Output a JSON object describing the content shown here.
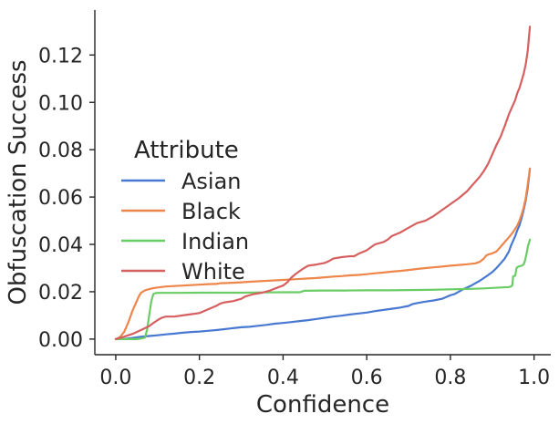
{
  "chart_data": {
    "type": "line",
    "title": "",
    "xlabel": "Confidence",
    "ylabel": "Obfuscation Success",
    "xlim": [
      -0.05,
      1.04
    ],
    "ylim": [
      -0.0066,
      0.139
    ],
    "grid": false,
    "xticks": {
      "values": [
        0.0,
        0.2,
        0.4,
        0.6,
        0.8,
        1.0
      ],
      "labels": [
        "0.0",
        "0.2",
        "0.4",
        "0.6",
        "0.8",
        "1.0"
      ]
    },
    "yticks": {
      "values": [
        0.0,
        0.02,
        0.04,
        0.06,
        0.08,
        0.1,
        0.12
      ],
      "labels": [
        "0.00",
        "0.02",
        "0.04",
        "0.06",
        "0.08",
        "0.10",
        "0.12"
      ]
    },
    "legend": {
      "title": "Attribute",
      "position": "upper-left-inside",
      "entries": [
        "Asian",
        "Black",
        "Indian",
        "White"
      ]
    },
    "colors": {
      "text": "#262626",
      "spine": "#262626",
      "background": "#ffffff"
    },
    "series": [
      {
        "name": "Asian",
        "color": "#4878d0",
        "points": [
          [
            0.0,
            0.0
          ],
          [
            0.02,
            0.0
          ],
          [
            0.04,
            0.0005
          ],
          [
            0.06,
            0.001
          ],
          [
            0.08,
            0.0013
          ],
          [
            0.1,
            0.0016
          ],
          [
            0.12,
            0.002
          ],
          [
            0.14,
            0.0023
          ],
          [
            0.16,
            0.0027
          ],
          [
            0.18,
            0.003
          ],
          [
            0.2,
            0.0032
          ],
          [
            0.22,
            0.0035
          ],
          [
            0.24,
            0.0038
          ],
          [
            0.26,
            0.0042
          ],
          [
            0.28,
            0.0046
          ],
          [
            0.3,
            0.005
          ],
          [
            0.32,
            0.0052
          ],
          [
            0.34,
            0.0056
          ],
          [
            0.36,
            0.006
          ],
          [
            0.38,
            0.0065
          ],
          [
            0.4,
            0.0068
          ],
          [
            0.42,
            0.0072
          ],
          [
            0.44,
            0.0076
          ],
          [
            0.46,
            0.008
          ],
          [
            0.48,
            0.0085
          ],
          [
            0.5,
            0.009
          ],
          [
            0.52,
            0.0095
          ],
          [
            0.54,
            0.0099
          ],
          [
            0.56,
            0.0104
          ],
          [
            0.58,
            0.0108
          ],
          [
            0.6,
            0.0112
          ],
          [
            0.62,
            0.0118
          ],
          [
            0.64,
            0.0123
          ],
          [
            0.66,
            0.0128
          ],
          [
            0.68,
            0.0133
          ],
          [
            0.7,
            0.014
          ],
          [
            0.71,
            0.0148
          ],
          [
            0.72,
            0.0152
          ],
          [
            0.74,
            0.0158
          ],
          [
            0.76,
            0.0163
          ],
          [
            0.78,
            0.017
          ],
          [
            0.79,
            0.0178
          ],
          [
            0.8,
            0.0185
          ],
          [
            0.81,
            0.019
          ],
          [
            0.82,
            0.02
          ],
          [
            0.83,
            0.021
          ],
          [
            0.84,
            0.0218
          ],
          [
            0.85,
            0.0226
          ],
          [
            0.86,
            0.0236
          ],
          [
            0.87,
            0.0246
          ],
          [
            0.88,
            0.0258
          ],
          [
            0.89,
            0.027
          ],
          [
            0.9,
            0.0283
          ],
          [
            0.91,
            0.03
          ],
          [
            0.92,
            0.032
          ],
          [
            0.93,
            0.034
          ],
          [
            0.94,
            0.037
          ],
          [
            0.945,
            0.0395
          ],
          [
            0.95,
            0.0415
          ],
          [
            0.955,
            0.0435
          ],
          [
            0.96,
            0.046
          ],
          [
            0.965,
            0.048
          ],
          [
            0.97,
            0.051
          ],
          [
            0.975,
            0.0545
          ],
          [
            0.98,
            0.0585
          ],
          [
            0.985,
            0.064
          ],
          [
            0.99,
            0.072
          ]
        ]
      },
      {
        "name": "Black",
        "color": "#ee854a",
        "points": [
          [
            0.0,
            0.0
          ],
          [
            0.01,
            0.0008
          ],
          [
            0.02,
            0.003
          ],
          [
            0.03,
            0.007
          ],
          [
            0.04,
            0.012
          ],
          [
            0.05,
            0.016
          ],
          [
            0.055,
            0.018
          ],
          [
            0.06,
            0.0195
          ],
          [
            0.07,
            0.0206
          ],
          [
            0.08,
            0.0211
          ],
          [
            0.09,
            0.0215
          ],
          [
            0.1,
            0.0218
          ],
          [
            0.12,
            0.0222
          ],
          [
            0.14,
            0.0224
          ],
          [
            0.16,
            0.0226
          ],
          [
            0.18,
            0.0228
          ],
          [
            0.2,
            0.023
          ],
          [
            0.22,
            0.0232
          ],
          [
            0.24,
            0.0233
          ],
          [
            0.25,
            0.0236
          ],
          [
            0.28,
            0.0238
          ],
          [
            0.3,
            0.024
          ],
          [
            0.32,
            0.0242
          ],
          [
            0.34,
            0.0244
          ],
          [
            0.36,
            0.0246
          ],
          [
            0.38,
            0.0248
          ],
          [
            0.4,
            0.025
          ],
          [
            0.43,
            0.0253
          ],
          [
            0.46,
            0.0256
          ],
          [
            0.48,
            0.0258
          ],
          [
            0.5,
            0.0261
          ],
          [
            0.52,
            0.0264
          ],
          [
            0.54,
            0.0266
          ],
          [
            0.56,
            0.0269
          ],
          [
            0.58,
            0.0271
          ],
          [
            0.6,
            0.0274
          ],
          [
            0.62,
            0.0278
          ],
          [
            0.64,
            0.0281
          ],
          [
            0.66,
            0.0285
          ],
          [
            0.68,
            0.0288
          ],
          [
            0.7,
            0.0292
          ],
          [
            0.72,
            0.0296
          ],
          [
            0.74,
            0.03
          ],
          [
            0.76,
            0.0303
          ],
          [
            0.78,
            0.0306
          ],
          [
            0.8,
            0.031
          ],
          [
            0.82,
            0.0313
          ],
          [
            0.84,
            0.0316
          ],
          [
            0.86,
            0.032
          ],
          [
            0.87,
            0.0326
          ],
          [
            0.88,
            0.034
          ],
          [
            0.885,
            0.0352
          ],
          [
            0.89,
            0.0357
          ],
          [
            0.9,
            0.0362
          ],
          [
            0.91,
            0.037
          ],
          [
            0.92,
            0.039
          ],
          [
            0.93,
            0.041
          ],
          [
            0.94,
            0.043
          ],
          [
            0.95,
            0.0452
          ],
          [
            0.96,
            0.048
          ],
          [
            0.965,
            0.05
          ],
          [
            0.97,
            0.0525
          ],
          [
            0.975,
            0.0555
          ],
          [
            0.98,
            0.0595
          ],
          [
            0.985,
            0.0655
          ],
          [
            0.99,
            0.072
          ]
        ]
      },
      {
        "name": "Indian",
        "color": "#6acc64",
        "points": [
          [
            0.0,
            0.0
          ],
          [
            0.05,
            0.0
          ],
          [
            0.06,
            0.0002
          ],
          [
            0.07,
            0.0006
          ],
          [
            0.075,
            0.004
          ],
          [
            0.08,
            0.01
          ],
          [
            0.085,
            0.016
          ],
          [
            0.09,
            0.019
          ],
          [
            0.095,
            0.0194
          ],
          [
            0.1,
            0.0195
          ],
          [
            0.15,
            0.0195
          ],
          [
            0.2,
            0.0196
          ],
          [
            0.25,
            0.0196
          ],
          [
            0.3,
            0.0196
          ],
          [
            0.35,
            0.0197
          ],
          [
            0.4,
            0.0198
          ],
          [
            0.44,
            0.0198
          ],
          [
            0.45,
            0.0204
          ],
          [
            0.5,
            0.0205
          ],
          [
            0.55,
            0.0205
          ],
          [
            0.6,
            0.0206
          ],
          [
            0.65,
            0.0206
          ],
          [
            0.7,
            0.0207
          ],
          [
            0.75,
            0.0208
          ],
          [
            0.8,
            0.021
          ],
          [
            0.85,
            0.0212
          ],
          [
            0.88,
            0.0214
          ],
          [
            0.9,
            0.0216
          ],
          [
            0.92,
            0.0218
          ],
          [
            0.94,
            0.022
          ],
          [
            0.945,
            0.0222
          ],
          [
            0.948,
            0.0228
          ],
          [
            0.95,
            0.0265
          ],
          [
            0.955,
            0.0268
          ],
          [
            0.958,
            0.03
          ],
          [
            0.962,
            0.0306
          ],
          [
            0.97,
            0.031
          ],
          [
            0.975,
            0.0315
          ],
          [
            0.978,
            0.033
          ],
          [
            0.982,
            0.036
          ],
          [
            0.985,
            0.039
          ],
          [
            0.99,
            0.042
          ]
        ]
      },
      {
        "name": "White",
        "color": "#d65f5f",
        "points": [
          [
            0.0,
            0.0
          ],
          [
            0.01,
            0.0005
          ],
          [
            0.02,
            0.001
          ],
          [
            0.03,
            0.0016
          ],
          [
            0.04,
            0.0022
          ],
          [
            0.05,
            0.003
          ],
          [
            0.06,
            0.0038
          ],
          [
            0.07,
            0.0046
          ],
          [
            0.08,
            0.0055
          ],
          [
            0.09,
            0.0068
          ],
          [
            0.1,
            0.008
          ],
          [
            0.11,
            0.009
          ],
          [
            0.12,
            0.0095
          ],
          [
            0.14,
            0.0095
          ],
          [
            0.16,
            0.01
          ],
          [
            0.18,
            0.0105
          ],
          [
            0.2,
            0.011
          ],
          [
            0.22,
            0.0125
          ],
          [
            0.24,
            0.014
          ],
          [
            0.25,
            0.015
          ],
          [
            0.26,
            0.0155
          ],
          [
            0.28,
            0.016
          ],
          [
            0.3,
            0.017
          ],
          [
            0.31,
            0.018
          ],
          [
            0.33,
            0.019
          ],
          [
            0.35,
            0.0196
          ],
          [
            0.37,
            0.0206
          ],
          [
            0.39,
            0.022
          ],
          [
            0.4,
            0.0226
          ],
          [
            0.41,
            0.024
          ],
          [
            0.42,
            0.026
          ],
          [
            0.43,
            0.0275
          ],
          [
            0.44,
            0.0288
          ],
          [
            0.45,
            0.03
          ],
          [
            0.46,
            0.031
          ],
          [
            0.48,
            0.0315
          ],
          [
            0.5,
            0.0322
          ],
          [
            0.51,
            0.033
          ],
          [
            0.52,
            0.034
          ],
          [
            0.54,
            0.0346
          ],
          [
            0.56,
            0.035
          ],
          [
            0.57,
            0.035
          ],
          [
            0.58,
            0.036
          ],
          [
            0.6,
            0.0375
          ],
          [
            0.61,
            0.0388
          ],
          [
            0.62,
            0.04
          ],
          [
            0.64,
            0.041
          ],
          [
            0.65,
            0.042
          ],
          [
            0.66,
            0.0435
          ],
          [
            0.68,
            0.045
          ],
          [
            0.7,
            0.047
          ],
          [
            0.72,
            0.049
          ],
          [
            0.74,
            0.05
          ],
          [
            0.76,
            0.052
          ],
          [
            0.78,
            0.0545
          ],
          [
            0.8,
            0.057
          ],
          [
            0.82,
            0.0595
          ],
          [
            0.83,
            0.061
          ],
          [
            0.84,
            0.0625
          ],
          [
            0.85,
            0.0645
          ],
          [
            0.86,
            0.0665
          ],
          [
            0.87,
            0.0685
          ],
          [
            0.88,
            0.071
          ],
          [
            0.89,
            0.074
          ],
          [
            0.9,
            0.078
          ],
          [
            0.905,
            0.08
          ],
          [
            0.91,
            0.082
          ],
          [
            0.92,
            0.0855
          ],
          [
            0.93,
            0.09
          ],
          [
            0.94,
            0.095
          ],
          [
            0.95,
            0.099
          ],
          [
            0.955,
            0.101
          ],
          [
            0.96,
            0.104
          ],
          [
            0.965,
            0.106
          ],
          [
            0.97,
            0.109
          ],
          [
            0.975,
            0.112
          ],
          [
            0.98,
            0.116
          ],
          [
            0.985,
            0.122
          ],
          [
            0.99,
            0.132
          ]
        ]
      }
    ]
  }
}
